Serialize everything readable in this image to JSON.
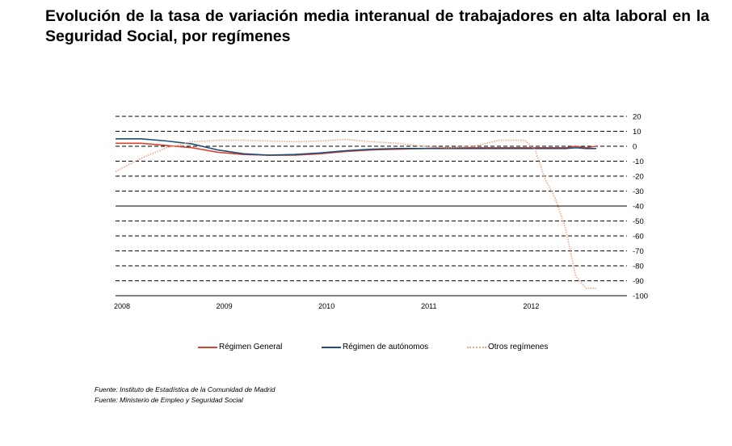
{
  "title": "Evolución de la tasa de variación media interanual de trabajadores en alta laboral en la Seguridad Social, por  regímenes",
  "chart_data": {
    "type": "line",
    "title": "",
    "xlabel": "",
    "ylabel": "",
    "x_ticks": [
      "2008",
      "2009",
      "2010",
      "2011",
      "2012"
    ],
    "y_ticks": [
      20,
      10,
      0,
      -10,
      -20,
      -30,
      -40,
      -50,
      -60,
      -70,
      -80,
      -90,
      -100
    ],
    "ylim": [
      -100,
      20
    ],
    "grid": "dashed horizontal",
    "legend_position": "bottom",
    "x": [
      2008.0,
      2008.25,
      2008.5,
      2008.75,
      2009.0,
      2009.25,
      2009.5,
      2009.75,
      2010.0,
      2010.25,
      2010.5,
      2010.75,
      2011.0,
      2011.25,
      2011.5,
      2011.75,
      2012.0,
      2012.1,
      2012.2,
      2012.3,
      2012.4,
      2012.5,
      2012.6,
      2012.7
    ],
    "series": [
      {
        "name": "Régimen General",
        "color": "#d9442e",
        "style": "solid",
        "values": [
          2,
          2,
          0.5,
          -1,
          -4,
          -5.5,
          -6,
          -6,
          -5,
          -3.5,
          -2.5,
          -2,
          -1.5,
          -1,
          -1,
          -1,
          -1,
          -1,
          -1,
          -1,
          -1,
          0,
          -1,
          0
        ]
      },
      {
        "name": "Régimen de autónomos",
        "color": "#1f4e79",
        "style": "solid",
        "values": [
          5,
          5,
          3.5,
          1.5,
          -2.5,
          -5,
          -6,
          -5.5,
          -4.5,
          -3,
          -2,
          -1.5,
          -1.5,
          -1.5,
          -1.5,
          -1.5,
          -1.5,
          -1.5,
          -1.5,
          -1.5,
          -1.5,
          -1,
          -1.5,
          -1.5
        ]
      },
      {
        "name": "Otros regímenes",
        "color": "#f4a582",
        "style": "dotted",
        "values": [
          -17,
          -8,
          -1,
          3,
          4,
          4,
          3.5,
          3,
          3.5,
          4.5,
          3,
          2,
          0,
          -1,
          0,
          4,
          4,
          -2,
          -22,
          -35,
          -55,
          -87,
          -95,
          -95
        ]
      }
    ]
  },
  "sources": [
    "Fuente: Instituto de Estadística de la Comunidad de Madrid",
    "Fuente: Ministerio de Empleo y Seguridad Social"
  ]
}
